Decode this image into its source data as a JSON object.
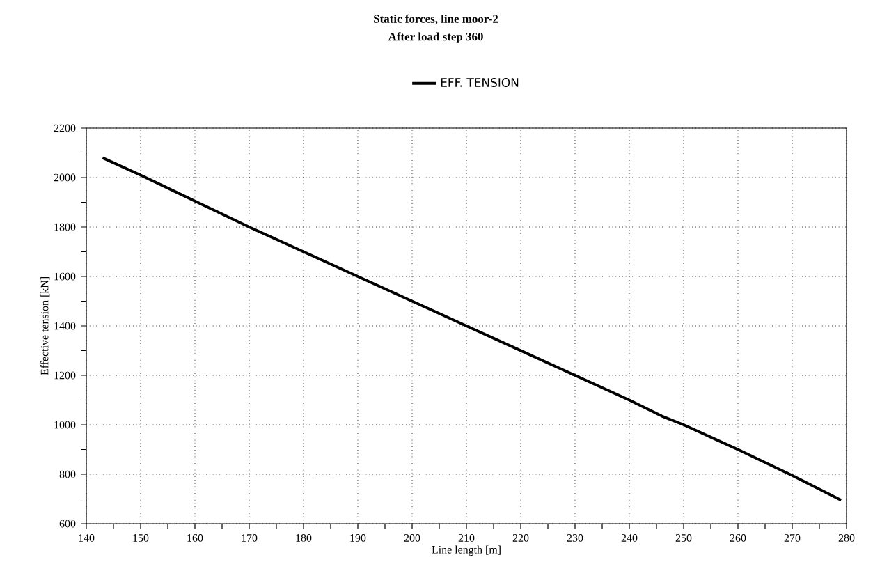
{
  "chart_data": {
    "type": "line",
    "title": "Static forces, line moor-2",
    "subtitle": "After load step  360",
    "xlabel": "Line length [m]",
    "ylabel": "Effective tension [kN]",
    "x": [
      143,
      150,
      160,
      170,
      180,
      190,
      200,
      206,
      210,
      220,
      230,
      240,
      246,
      250,
      260,
      270,
      279
    ],
    "series": [
      {
        "name": "EFF. TENSION",
        "color": "#000000",
        "values": [
          2080,
          2010,
          1905,
          1800,
          1700,
          1600,
          1500,
          1440,
          1400,
          1300,
          1200,
          1100,
          1035,
          1000,
          900,
          795,
          695
        ]
      }
    ],
    "xlim": [
      140,
      280
    ],
    "xticks": [
      140,
      150,
      160,
      170,
      180,
      190,
      200,
      210,
      220,
      230,
      240,
      250,
      260,
      270,
      280
    ],
    "ylim": [
      600,
      2200
    ],
    "yticks": [
      600,
      800,
      1000,
      1200,
      1400,
      1600,
      1800,
      2000,
      2200
    ],
    "grid": true,
    "legend": "top",
    "marker": "none",
    "line_style": "solid"
  }
}
